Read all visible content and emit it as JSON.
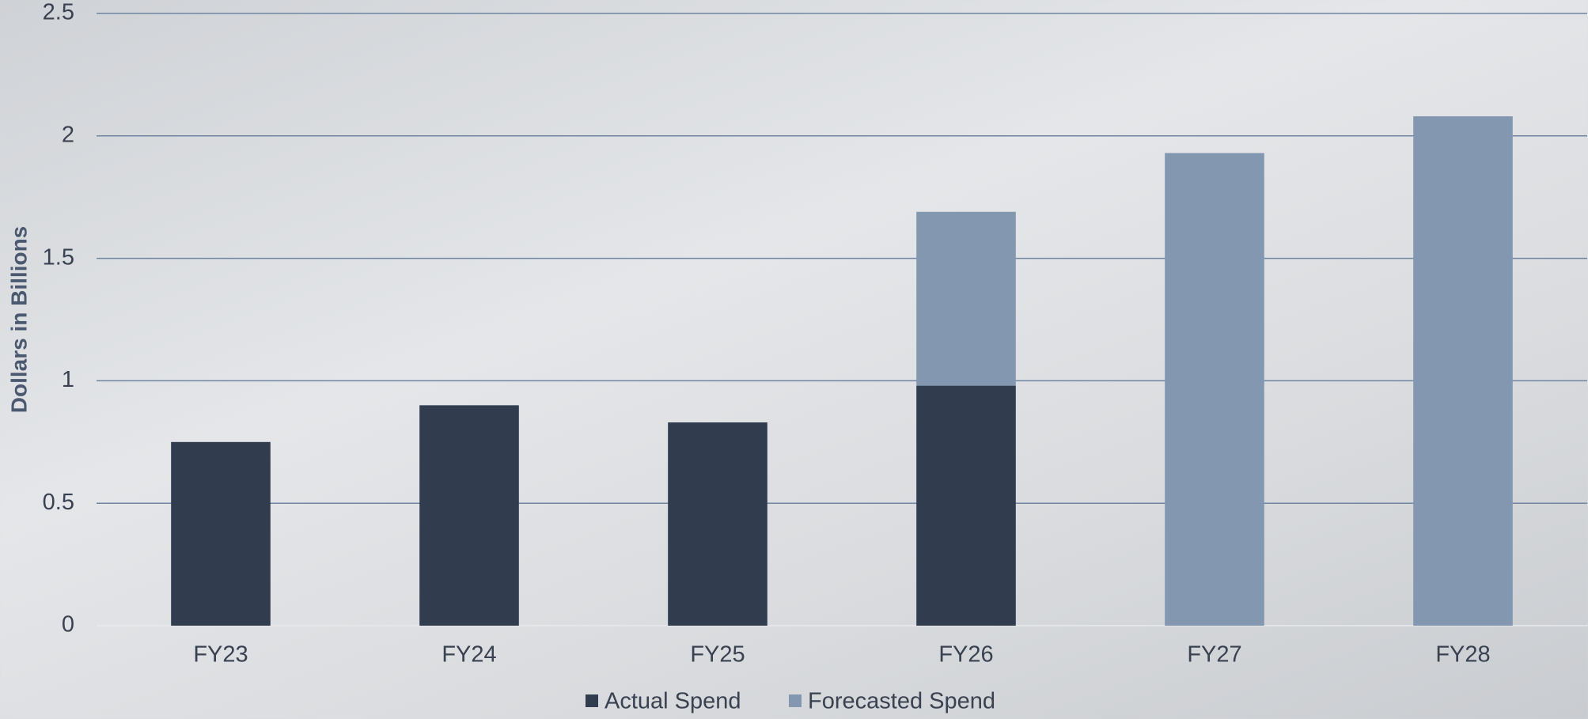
{
  "chart_data": {
    "type": "bar",
    "stacked": true,
    "y_label": "Dollars in Billions",
    "categories": [
      "FY23",
      "FY24",
      "FY25",
      "FY26",
      "FY27",
      "FY28"
    ],
    "series": [
      {
        "name": "Actual Spend",
        "color": "#323c4f",
        "values": [
          0.75,
          0.9,
          0.83,
          0.98,
          null,
          null
        ]
      },
      {
        "name": "Forecasted Spend",
        "color": "#8497b0",
        "values": [
          null,
          null,
          null,
          0.71,
          1.93,
          2.08
        ]
      }
    ],
    "ylim": [
      0,
      2.5
    ],
    "yticks": [
      0,
      0.5,
      1,
      1.5,
      2,
      2.5
    ],
    "grid": true,
    "legend": "bottom"
  }
}
